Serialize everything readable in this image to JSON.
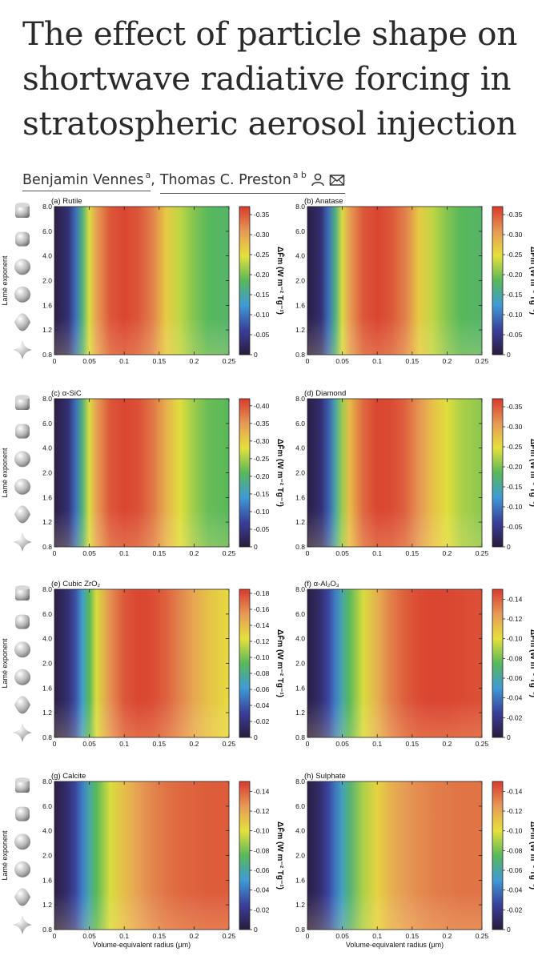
{
  "paper": {
    "title_lines": [
      "The effect of particle shape on",
      "shortwave radiative forcing in",
      "stratospheric aerosol injection"
    ],
    "authors": [
      {
        "name": "Benjamin Vennes",
        "affil": "a"
      },
      {
        "name": "Thomas C. Preston",
        "affil": "a b"
      }
    ],
    "author_icons": [
      "person-icon",
      "envelope-icon"
    ]
  },
  "figure": {
    "y_axis_label": "Lamé exponent",
    "x_axis_label": "Volume-equivalent radius (μm)",
    "colorbar_label": "ΔF̄m (W m⁻² Tg⁻¹)",
    "colormap": [
      "#2a1b3d",
      "#3a3f9a",
      "#3f9ad6",
      "#58b85a",
      "#e6e03c",
      "#e69a56",
      "#d83a2c"
    ],
    "shape_icons": [
      "cylinder-shape-icon",
      "rounded-cylinder-shape-icon",
      "sphere-shape-icon",
      "sphere-shape-icon",
      "lens-shape-icon",
      "astroid-shape-icon"
    ]
  },
  "chart_data": [
    {
      "type": "heatmap",
      "panel": "(a) Rutile",
      "title": "(a) Rutile",
      "x_ticks": [
        "0",
        "0.05",
        "0.1",
        "0.15",
        "0.2",
        "0.25"
      ],
      "y_ticks": [
        "0.8",
        "1.2",
        "1.6",
        "2.0",
        "4.0",
        "6.0",
        "8.0"
      ],
      "xlim": [
        0,
        0.25
      ],
      "ylabel": "Lamé exponent",
      "colorbar_ticks": [
        "0",
        "-0.05",
        "-0.10",
        "-0.15",
        "-0.20",
        "-0.25",
        "-0.30",
        "-0.35"
      ],
      "colorbar_range": [
        0,
        -0.37
      ],
      "profile_r": [
        0,
        0.01,
        0.02,
        0.03,
        0.04,
        0.05,
        0.06,
        0.08,
        0.1,
        0.12,
        0.14,
        0.16,
        0.18,
        0.2,
        0.22,
        0.25
      ],
      "profile_t": [
        0.02,
        0.05,
        0.1,
        0.25,
        0.45,
        0.65,
        0.82,
        0.95,
        0.98,
        0.95,
        0.88,
        0.72,
        0.62,
        0.55,
        0.5,
        0.48
      ]
    },
    {
      "type": "heatmap",
      "panel": "(b) Anatase",
      "title": "(b) Anatase",
      "x_ticks": [
        "0",
        "0.05",
        "0.1",
        "0.15",
        "0.2",
        "0.25"
      ],
      "y_ticks": [
        "0.8",
        "1.2",
        "1.6",
        "2.0",
        "4.0",
        "6.0",
        "8.0"
      ],
      "xlim": [
        0,
        0.25
      ],
      "ylabel": "",
      "colorbar_ticks": [
        "0",
        "-0.05",
        "-0.10",
        "-0.15",
        "-0.20",
        "-0.25",
        "-0.30",
        "-0.35"
      ],
      "colorbar_range": [
        0,
        -0.37
      ],
      "profile_r": [
        0,
        0.01,
        0.02,
        0.03,
        0.04,
        0.05,
        0.06,
        0.08,
        0.1,
        0.12,
        0.14,
        0.16,
        0.18,
        0.2,
        0.22,
        0.25
      ],
      "profile_t": [
        0.02,
        0.05,
        0.1,
        0.25,
        0.45,
        0.65,
        0.82,
        0.95,
        0.98,
        0.95,
        0.88,
        0.72,
        0.62,
        0.55,
        0.5,
        0.48
      ]
    },
    {
      "type": "heatmap",
      "panel": "(c) α-SiC",
      "title": "(c) α-SiC",
      "x_ticks": [
        "0",
        "0.05",
        "0.1",
        "0.15",
        "0.2",
        "0.25"
      ],
      "y_ticks": [
        "0.8",
        "1.2",
        "1.6",
        "2.0",
        "4.0",
        "6.0",
        "8.0"
      ],
      "xlim": [
        0,
        0.25
      ],
      "ylabel": "Lamé exponent",
      "colorbar_ticks": [
        "0",
        "-0.05",
        "-0.10",
        "-0.15",
        "-0.20",
        "-0.25",
        "-0.30",
        "-0.35",
        "-0.40"
      ],
      "colorbar_range": [
        0,
        -0.42
      ],
      "profile_r": [
        0,
        0.01,
        0.02,
        0.03,
        0.04,
        0.05,
        0.06,
        0.08,
        0.1,
        0.12,
        0.14,
        0.16,
        0.18,
        0.2,
        0.22,
        0.25
      ],
      "profile_t": [
        0.02,
        0.05,
        0.1,
        0.25,
        0.45,
        0.65,
        0.82,
        0.95,
        0.98,
        0.96,
        0.9,
        0.78,
        0.66,
        0.58,
        0.52,
        0.5
      ]
    },
    {
      "type": "heatmap",
      "panel": "(d) Diamond",
      "title": "(d) Diamond",
      "x_ticks": [
        "0",
        "0.05",
        "0.1",
        "0.15",
        "0.2",
        "0.25"
      ],
      "y_ticks": [
        "0.8",
        "1.2",
        "1.6",
        "2.0",
        "4.0",
        "6.0",
        "8.0"
      ],
      "xlim": [
        0,
        0.25
      ],
      "ylabel": "",
      "colorbar_ticks": [
        "0",
        "-0.05",
        "-0.10",
        "-0.15",
        "-0.20",
        "-0.25",
        "-0.30",
        "-0.35"
      ],
      "colorbar_range": [
        0,
        -0.37
      ],
      "profile_r": [
        0,
        0.01,
        0.02,
        0.03,
        0.04,
        0.05,
        0.06,
        0.08,
        0.1,
        0.12,
        0.14,
        0.16,
        0.18,
        0.2,
        0.22,
        0.25
      ],
      "profile_t": [
        0.02,
        0.05,
        0.1,
        0.22,
        0.4,
        0.58,
        0.75,
        0.92,
        0.98,
        0.97,
        0.93,
        0.84,
        0.74,
        0.66,
        0.6,
        0.56
      ]
    },
    {
      "type": "heatmap",
      "panel": "(e) Cubic ZrO₂",
      "title": "(e) Cubic ZrO₂",
      "x_ticks": [
        "0",
        "0.05",
        "0.1",
        "0.15",
        "0.2",
        "0.25"
      ],
      "y_ticks": [
        "0.8",
        "1.2",
        "1.6",
        "2.0",
        "4.0",
        "6.0",
        "8.0"
      ],
      "xlim": [
        0,
        0.25
      ],
      "ylabel": "Lamé exponent",
      "colorbar_ticks": [
        "0",
        "-0.02",
        "-0.04",
        "-0.06",
        "-0.08",
        "-0.10",
        "-0.12",
        "-0.14",
        "-0.16",
        "-0.18"
      ],
      "colorbar_range": [
        0,
        -0.185
      ],
      "profile_r": [
        0,
        0.01,
        0.02,
        0.03,
        0.04,
        0.05,
        0.06,
        0.08,
        0.1,
        0.12,
        0.14,
        0.16,
        0.18,
        0.2,
        0.22,
        0.25
      ],
      "profile_t": [
        0.02,
        0.05,
        0.1,
        0.2,
        0.35,
        0.5,
        0.65,
        0.85,
        0.95,
        0.98,
        0.97,
        0.93,
        0.87,
        0.8,
        0.74,
        0.68
      ]
    },
    {
      "type": "heatmap",
      "panel": "(f) α-Al₂O₃",
      "title": "(f) α-Al₂O₃",
      "x_ticks": [
        "0",
        "0.05",
        "0.1",
        "0.15",
        "0.2",
        "0.25"
      ],
      "y_ticks": [
        "0.8",
        "1.2",
        "1.6",
        "2.0",
        "4.0",
        "6.0",
        "8.0"
      ],
      "xlim": [
        0,
        0.25
      ],
      "ylabel": "",
      "colorbar_ticks": [
        "0",
        "-0.02",
        "-0.04",
        "-0.06",
        "-0.08",
        "-0.10",
        "-0.12",
        "-0.14"
      ],
      "colorbar_range": [
        0,
        -0.15
      ],
      "profile_r": [
        0,
        0.01,
        0.02,
        0.03,
        0.04,
        0.05,
        0.06,
        0.08,
        0.1,
        0.12,
        0.14,
        0.16,
        0.18,
        0.2,
        0.22,
        0.25
      ],
      "profile_t": [
        0.02,
        0.05,
        0.1,
        0.18,
        0.28,
        0.4,
        0.5,
        0.65,
        0.78,
        0.88,
        0.94,
        0.97,
        0.98,
        0.98,
        0.97,
        0.96
      ]
    },
    {
      "type": "heatmap",
      "panel": "(g) Calcite",
      "title": "(g) Calcite",
      "x_ticks": [
        "0",
        "0.05",
        "0.1",
        "0.15",
        "0.2",
        "0.25"
      ],
      "y_ticks": [
        "0.8",
        "1.2",
        "1.6",
        "2.0",
        "4.0",
        "6.0",
        "8.0"
      ],
      "xlim": [
        0,
        0.25
      ],
      "ylabel": "Lamé exponent",
      "xlabel": "Volume-equivalent radius (μm)",
      "colorbar_ticks": [
        "0",
        "-0.02",
        "-0.04",
        "-0.06",
        "-0.08",
        "-0.10",
        "-0.12",
        "-0.14"
      ],
      "colorbar_range": [
        0,
        -0.15
      ],
      "profile_r": [
        0,
        0.01,
        0.02,
        0.03,
        0.04,
        0.05,
        0.06,
        0.08,
        0.1,
        0.12,
        0.14,
        0.16,
        0.18,
        0.2,
        0.22,
        0.25
      ],
      "profile_t": [
        0.02,
        0.05,
        0.1,
        0.18,
        0.28,
        0.4,
        0.5,
        0.65,
        0.75,
        0.82,
        0.87,
        0.9,
        0.92,
        0.93,
        0.94,
        0.94
      ]
    },
    {
      "type": "heatmap",
      "panel": "(h) Sulphate",
      "title": "(h) Sulphate",
      "x_ticks": [
        "0",
        "0.05",
        "0.1",
        "0.15",
        "0.2",
        "0.25"
      ],
      "y_ticks": [
        "0.8",
        "1.2",
        "1.6",
        "2.0",
        "4.0",
        "6.0",
        "8.0"
      ],
      "xlim": [
        0,
        0.25
      ],
      "ylabel": "",
      "xlabel": "Volume-equivalent radius (μm)",
      "colorbar_ticks": [
        "0",
        "-0.02",
        "-0.04",
        "-0.06",
        "-0.08",
        "-0.10",
        "-0.12",
        "-0.14"
      ],
      "colorbar_range": [
        0,
        -0.15
      ],
      "profile_r": [
        0,
        0.01,
        0.02,
        0.03,
        0.04,
        0.05,
        0.06,
        0.08,
        0.1,
        0.12,
        0.14,
        0.16,
        0.18,
        0.2,
        0.22,
        0.25
      ],
      "profile_t": [
        0.02,
        0.05,
        0.1,
        0.18,
        0.27,
        0.37,
        0.46,
        0.6,
        0.7,
        0.78,
        0.83,
        0.86,
        0.88,
        0.89,
        0.9,
        0.9
      ]
    }
  ]
}
